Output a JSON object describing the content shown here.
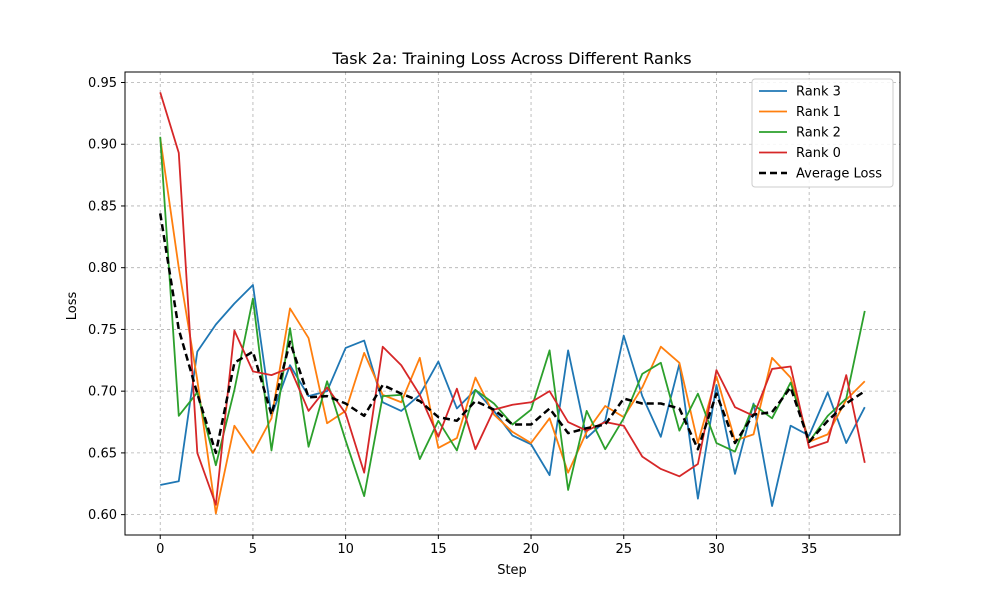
{
  "chart_data": {
    "type": "line",
    "title": "Task 2a: Training Loss Across Different Ranks",
    "xlabel": "Step",
    "ylabel": "Loss",
    "xlim": [
      -1.9,
      39.9
    ],
    "ylim": [
      0.5835,
      0.9585
    ],
    "xticks": [
      0,
      5,
      10,
      15,
      20,
      25,
      30,
      35
    ],
    "yticks": [
      0.6,
      0.65,
      0.7,
      0.75,
      0.8,
      0.85,
      0.9,
      0.95
    ],
    "ytick_labels": [
      "0.60",
      "0.65",
      "0.70",
      "0.75",
      "0.80",
      "0.85",
      "0.90",
      "0.95"
    ],
    "grid": true,
    "legend_position": "top-right",
    "x": [
      0,
      1,
      2,
      3,
      4,
      5,
      6,
      7,
      8,
      9,
      10,
      11,
      12,
      13,
      14,
      15,
      16,
      17,
      18,
      19,
      20,
      21,
      22,
      23,
      24,
      25,
      26,
      27,
      28,
      29,
      30,
      31,
      32,
      33,
      34,
      35,
      36,
      37,
      38
    ],
    "series": [
      {
        "name": "Rank 3",
        "color": "#1f77b4",
        "dash": false,
        "values": [
          0.624,
          0.627,
          0.732,
          0.754,
          0.771,
          0.786,
          0.68,
          0.721,
          0.696,
          0.7,
          0.735,
          0.741,
          0.691,
          0.684,
          0.697,
          0.724,
          0.686,
          0.701,
          0.684,
          0.664,
          0.657,
          0.632,
          0.733,
          0.662,
          0.676,
          0.745,
          0.696,
          0.663,
          0.722,
          0.613,
          0.705,
          0.633,
          0.69,
          0.607,
          0.672,
          0.664,
          0.699,
          0.658,
          0.687
        ]
      },
      {
        "name": "Rank 1",
        "color": "#ff7f0e",
        "dash": false,
        "values": [
          0.905,
          0.8,
          0.709,
          0.601,
          0.672,
          0.65,
          0.678,
          0.767,
          0.743,
          0.674,
          0.684,
          0.731,
          0.697,
          0.691,
          0.727,
          0.654,
          0.662,
          0.711,
          0.681,
          0.667,
          0.658,
          0.678,
          0.634,
          0.667,
          0.688,
          0.679,
          0.703,
          0.736,
          0.723,
          0.658,
          0.712,
          0.66,
          0.665,
          0.727,
          0.711,
          0.659,
          0.665,
          0.693,
          0.708
        ]
      },
      {
        "name": "Rank 2",
        "color": "#2ca02c",
        "dash": false,
        "values": [
          0.906,
          0.68,
          0.699,
          0.64,
          0.701,
          0.775,
          0.652,
          0.751,
          0.655,
          0.708,
          0.66,
          0.615,
          0.696,
          0.697,
          0.645,
          0.676,
          0.652,
          0.701,
          0.69,
          0.673,
          0.685,
          0.733,
          0.62,
          0.684,
          0.653,
          0.678,
          0.714,
          0.723,
          0.668,
          0.698,
          0.658,
          0.651,
          0.689,
          0.678,
          0.707,
          0.659,
          0.68,
          0.694,
          0.765
        ]
      },
      {
        "name": "Rank 0",
        "color": "#d62728",
        "dash": false,
        "values": [
          0.942,
          0.893,
          0.65,
          0.608,
          0.749,
          0.716,
          0.713,
          0.719,
          0.684,
          0.703,
          0.682,
          0.634,
          0.736,
          0.721,
          0.697,
          0.663,
          0.702,
          0.653,
          0.685,
          0.689,
          0.691,
          0.7,
          0.675,
          0.668,
          0.675,
          0.672,
          0.647,
          0.637,
          0.631,
          0.641,
          0.717,
          0.687,
          0.68,
          0.718,
          0.72,
          0.654,
          0.659,
          0.713,
          0.642
        ]
      },
      {
        "name": "Average Loss",
        "color": "#000000",
        "dash": true,
        "values": [
          0.844,
          0.75,
          0.698,
          0.65,
          0.723,
          0.732,
          0.681,
          0.74,
          0.695,
          0.696,
          0.69,
          0.68,
          0.705,
          0.698,
          0.692,
          0.679,
          0.676,
          0.692,
          0.685,
          0.673,
          0.673,
          0.686,
          0.666,
          0.67,
          0.673,
          0.694,
          0.69,
          0.69,
          0.686,
          0.653,
          0.698,
          0.658,
          0.681,
          0.683,
          0.703,
          0.659,
          0.676,
          0.69,
          0.7
        ]
      }
    ]
  }
}
